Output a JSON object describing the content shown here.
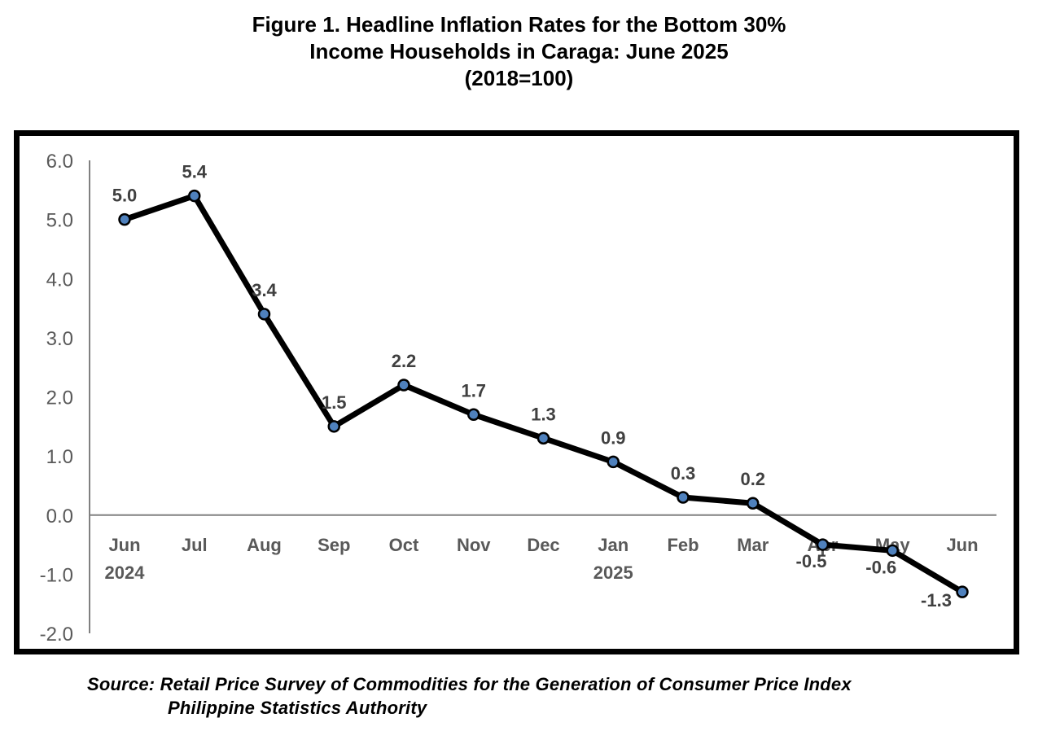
{
  "figure": {
    "title_line1": "Figure 1. Headline Inflation Rates for the Bottom 30%",
    "title_line2": "Income Households in Caraga: June 2025",
    "title_line3": "(2018=100)"
  },
  "source": {
    "line1": "Source: Retail Price Survey of Commodities for the Generation of Consumer Price Index",
    "line2": "Philippine Statistics Authority"
  },
  "colors": {
    "line": "#000000",
    "marker_fill": "#4F81BD",
    "axis": "#808080",
    "tick_text": "#595959",
    "label_text": "#404040"
  },
  "chart_data": {
    "type": "line",
    "categories": [
      "Jun",
      "Jul",
      "Aug",
      "Sep",
      "Oct",
      "Nov",
      "Dec",
      "Jan",
      "Feb",
      "Mar",
      "Apr",
      "May",
      "Jun"
    ],
    "category_sublabels": [
      "2024",
      "",
      "",
      "",
      "",
      "",
      "",
      "2025",
      "",
      "",
      "",
      "",
      ""
    ],
    "series": [
      {
        "values": [
          5.0,
          5.4,
          3.4,
          1.5,
          2.2,
          1.7,
          1.3,
          0.9,
          0.3,
          0.2,
          -0.5,
          -0.6,
          -1.3
        ],
        "data_labels": [
          "5.0",
          "5.4",
          "3.4",
          "1.5",
          "2.2",
          "1.7",
          "1.3",
          "0.9",
          "0.3",
          "0.2",
          "-0.5",
          "-0.6",
          "-1.3"
        ]
      }
    ],
    "ylim": [
      -2.0,
      6.0
    ],
    "y_ticks": [
      6.0,
      5.0,
      4.0,
      3.0,
      2.0,
      1.0,
      0.0,
      -1.0,
      -2.0
    ],
    "y_tick_labels": [
      "6.0",
      "5.0",
      "4.0",
      "3.0",
      "2.0",
      "1.0",
      "0.0",
      "-1.0",
      "-2.0"
    ],
    "grid": false,
    "legend": "none"
  }
}
